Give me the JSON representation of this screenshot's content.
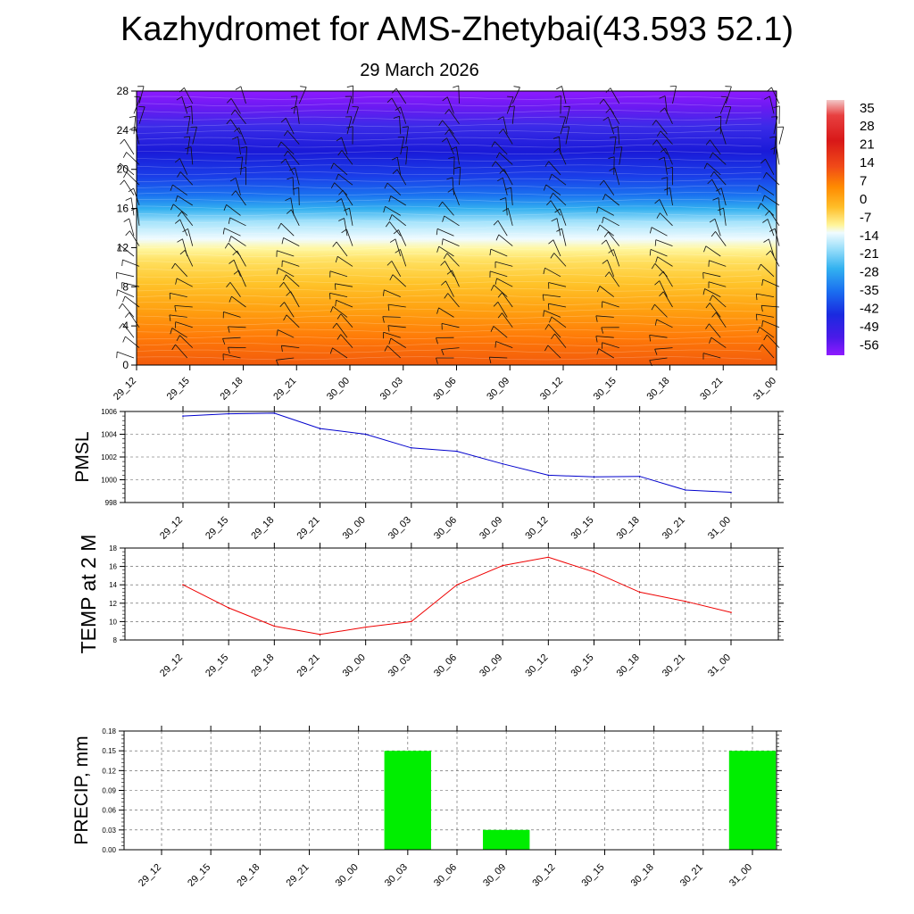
{
  "header": {
    "title": "Kazhydromet for AMS-Zhetybai(43.593 52.1)",
    "date": "29 March 2026"
  },
  "colors": {
    "pmsl_line": "#0000cc",
    "temp_line": "#ee0000",
    "precip_bar": "#00ee00",
    "colorbar_stops": [
      "#f2b8b8",
      "#e02020",
      "#f04818",
      "#ff8c00",
      "#ffc830",
      "#fff59a",
      "#e8f8ff",
      "#33b8f0",
      "#1a5ff0",
      "#1a1ad8",
      "#8e1aff"
    ]
  },
  "chart_data": [
    {
      "id": "cross-section",
      "type": "heatmap",
      "y_ticks": [
        "0",
        "4",
        "8",
        "12",
        "16",
        "20",
        "24",
        "28"
      ],
      "ylim": [
        0,
        28
      ],
      "x_ticks": [
        "29_12",
        "29_15",
        "29_18",
        "29_21",
        "30_00",
        "30_03",
        "30_06",
        "30_09",
        "30_12",
        "30_15",
        "30_18",
        "30_21",
        "31_00"
      ],
      "colorbar_labels": [
        "35",
        "28",
        "21",
        "14",
        "7",
        "0",
        "-7",
        "-14",
        "-21",
        "-28",
        "-35",
        "-42",
        "-49",
        "-56"
      ],
      "colorbar_range": [
        -60,
        38
      ]
    },
    {
      "id": "pmsl",
      "type": "line",
      "ylabel": "PMSL",
      "categories": [
        "29_12",
        "29_15",
        "29_18",
        "29_21",
        "30_00",
        "30_03",
        "30_06",
        "30_09",
        "30_12",
        "30_15",
        "30_18",
        "30_21",
        "31_00"
      ],
      "values": [
        1005.6,
        1005.8,
        1005.85,
        1004.5,
        1004.0,
        1002.8,
        1002.5,
        1001.4,
        1000.4,
        1000.25,
        1000.3,
        999.1,
        998.9
      ],
      "ylim": [
        998,
        1006
      ],
      "y_ticks": [
        "998",
        "1000",
        "1002",
        "1004",
        "1006"
      ]
    },
    {
      "id": "temp",
      "type": "line",
      "ylabel": "TEMP at 2 M",
      "categories": [
        "29_12",
        "29_15",
        "29_18",
        "29_21",
        "30_00",
        "30_03",
        "30_06",
        "30_09",
        "30_12",
        "30_15",
        "30_18",
        "30_21",
        "31_00"
      ],
      "values": [
        14.0,
        11.5,
        9.5,
        8.6,
        9.4,
        10.0,
        14.0,
        16.1,
        17.0,
        15.4,
        13.2,
        12.2,
        11.0
      ],
      "ylim": [
        8,
        18
      ],
      "y_ticks": [
        "8",
        "10",
        "12",
        "14",
        "16",
        "18"
      ]
    },
    {
      "id": "precip",
      "type": "bar",
      "ylabel": "PRECIP, mm",
      "categories": [
        "29_12",
        "29_15",
        "29_18",
        "29_21",
        "30_00",
        "30_03",
        "30_06",
        "30_09",
        "30_12",
        "30_15",
        "30_18",
        "30_21",
        "31_00"
      ],
      "values": [
        0,
        0,
        0,
        0,
        0,
        0.15,
        0,
        0.03,
        0,
        0,
        0,
        0,
        0.15
      ],
      "ylim": [
        0,
        0.18
      ],
      "y_ticks": [
        "0.00",
        "0.03",
        "0.06",
        "0.09",
        "0.12",
        "0.15",
        "0.18"
      ]
    }
  ]
}
